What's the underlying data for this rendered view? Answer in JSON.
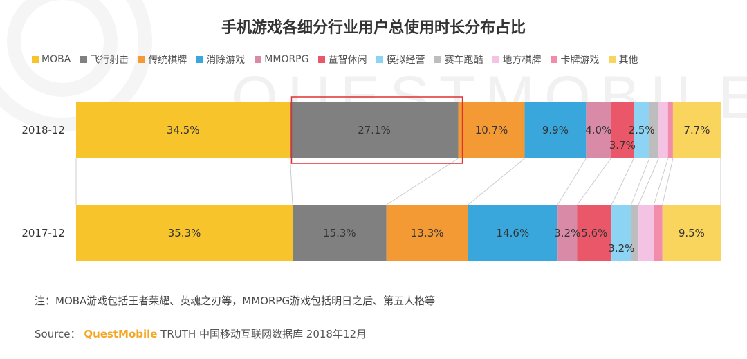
{
  "chart_data": {
    "type": "bar",
    "orientation": "horizontal",
    "stacked": true,
    "normalized": true,
    "title": "手机游戏各细分行业用户总使用时长分布占比",
    "categories": [
      "2018-12",
      "2017-12"
    ],
    "series": [
      {
        "name": "MOBA",
        "color": "#f7c52b",
        "values": [
          34.5,
          35.3
        ],
        "labels": [
          "34.5%",
          "35.3%"
        ]
      },
      {
        "name": "飞行射击",
        "color": "#808080",
        "values": [
          27.1,
          15.3
        ],
        "labels": [
          "27.1%",
          "15.3%"
        ]
      },
      {
        "name": "传统棋牌",
        "color": "#f39a35",
        "values": [
          10.7,
          13.3
        ],
        "labels": [
          "10.7%",
          "13.3%"
        ]
      },
      {
        "name": "消除游戏",
        "color": "#3aa7dc",
        "values": [
          9.9,
          14.6
        ],
        "labels": [
          "9.9%",
          "14.6%"
        ]
      },
      {
        "name": "MMORPG",
        "color": "#d98aa7",
        "values": [
          4.0,
          3.2
        ],
        "labels": [
          "4.0%",
          "3.2%"
        ]
      },
      {
        "name": "益智休闲",
        "color": "#ea5769",
        "values": [
          3.7,
          5.6
        ],
        "labels": [
          "3.7%",
          "5.6%"
        ]
      },
      {
        "name": "模拟经营",
        "color": "#8dd4f4",
        "values": [
          2.5,
          3.2
        ],
        "labels": [
          "2.5%",
          "3.2%"
        ]
      },
      {
        "name": "赛车跑酷",
        "color": "#bdbdbd",
        "values": [
          1.5,
          1.2
        ],
        "labels": [
          "",
          ""
        ]
      },
      {
        "name": "地方棋牌",
        "color": "#f4c3e3",
        "values": [
          1.5,
          2.5
        ],
        "labels": [
          "",
          ""
        ]
      },
      {
        "name": "卡牌游戏",
        "color": "#f28cab",
        "values": [
          0.8,
          1.4
        ],
        "labels": [
          "",
          ""
        ]
      },
      {
        "name": "其他",
        "color": "#fad55e",
        "values": [
          7.7,
          9.5
        ],
        "labels": [
          "7.7%",
          "9.5%"
        ]
      }
    ],
    "highlight": {
      "category": "2018-12",
      "series": "飞行射击",
      "color": "#e03030"
    },
    "legend_position": "top",
    "grid": false
  },
  "note": "注：MOBA游戏包括王者荣耀、英魂之刃等，MMORPG游戏包括明日之后、第五人格等",
  "source": {
    "prefix": "Source：",
    "brand": "QuestMobile",
    "text": "TRUTH 中国移动互联网数据库 2018年12月"
  },
  "watermark": "QUESTMOBILE"
}
